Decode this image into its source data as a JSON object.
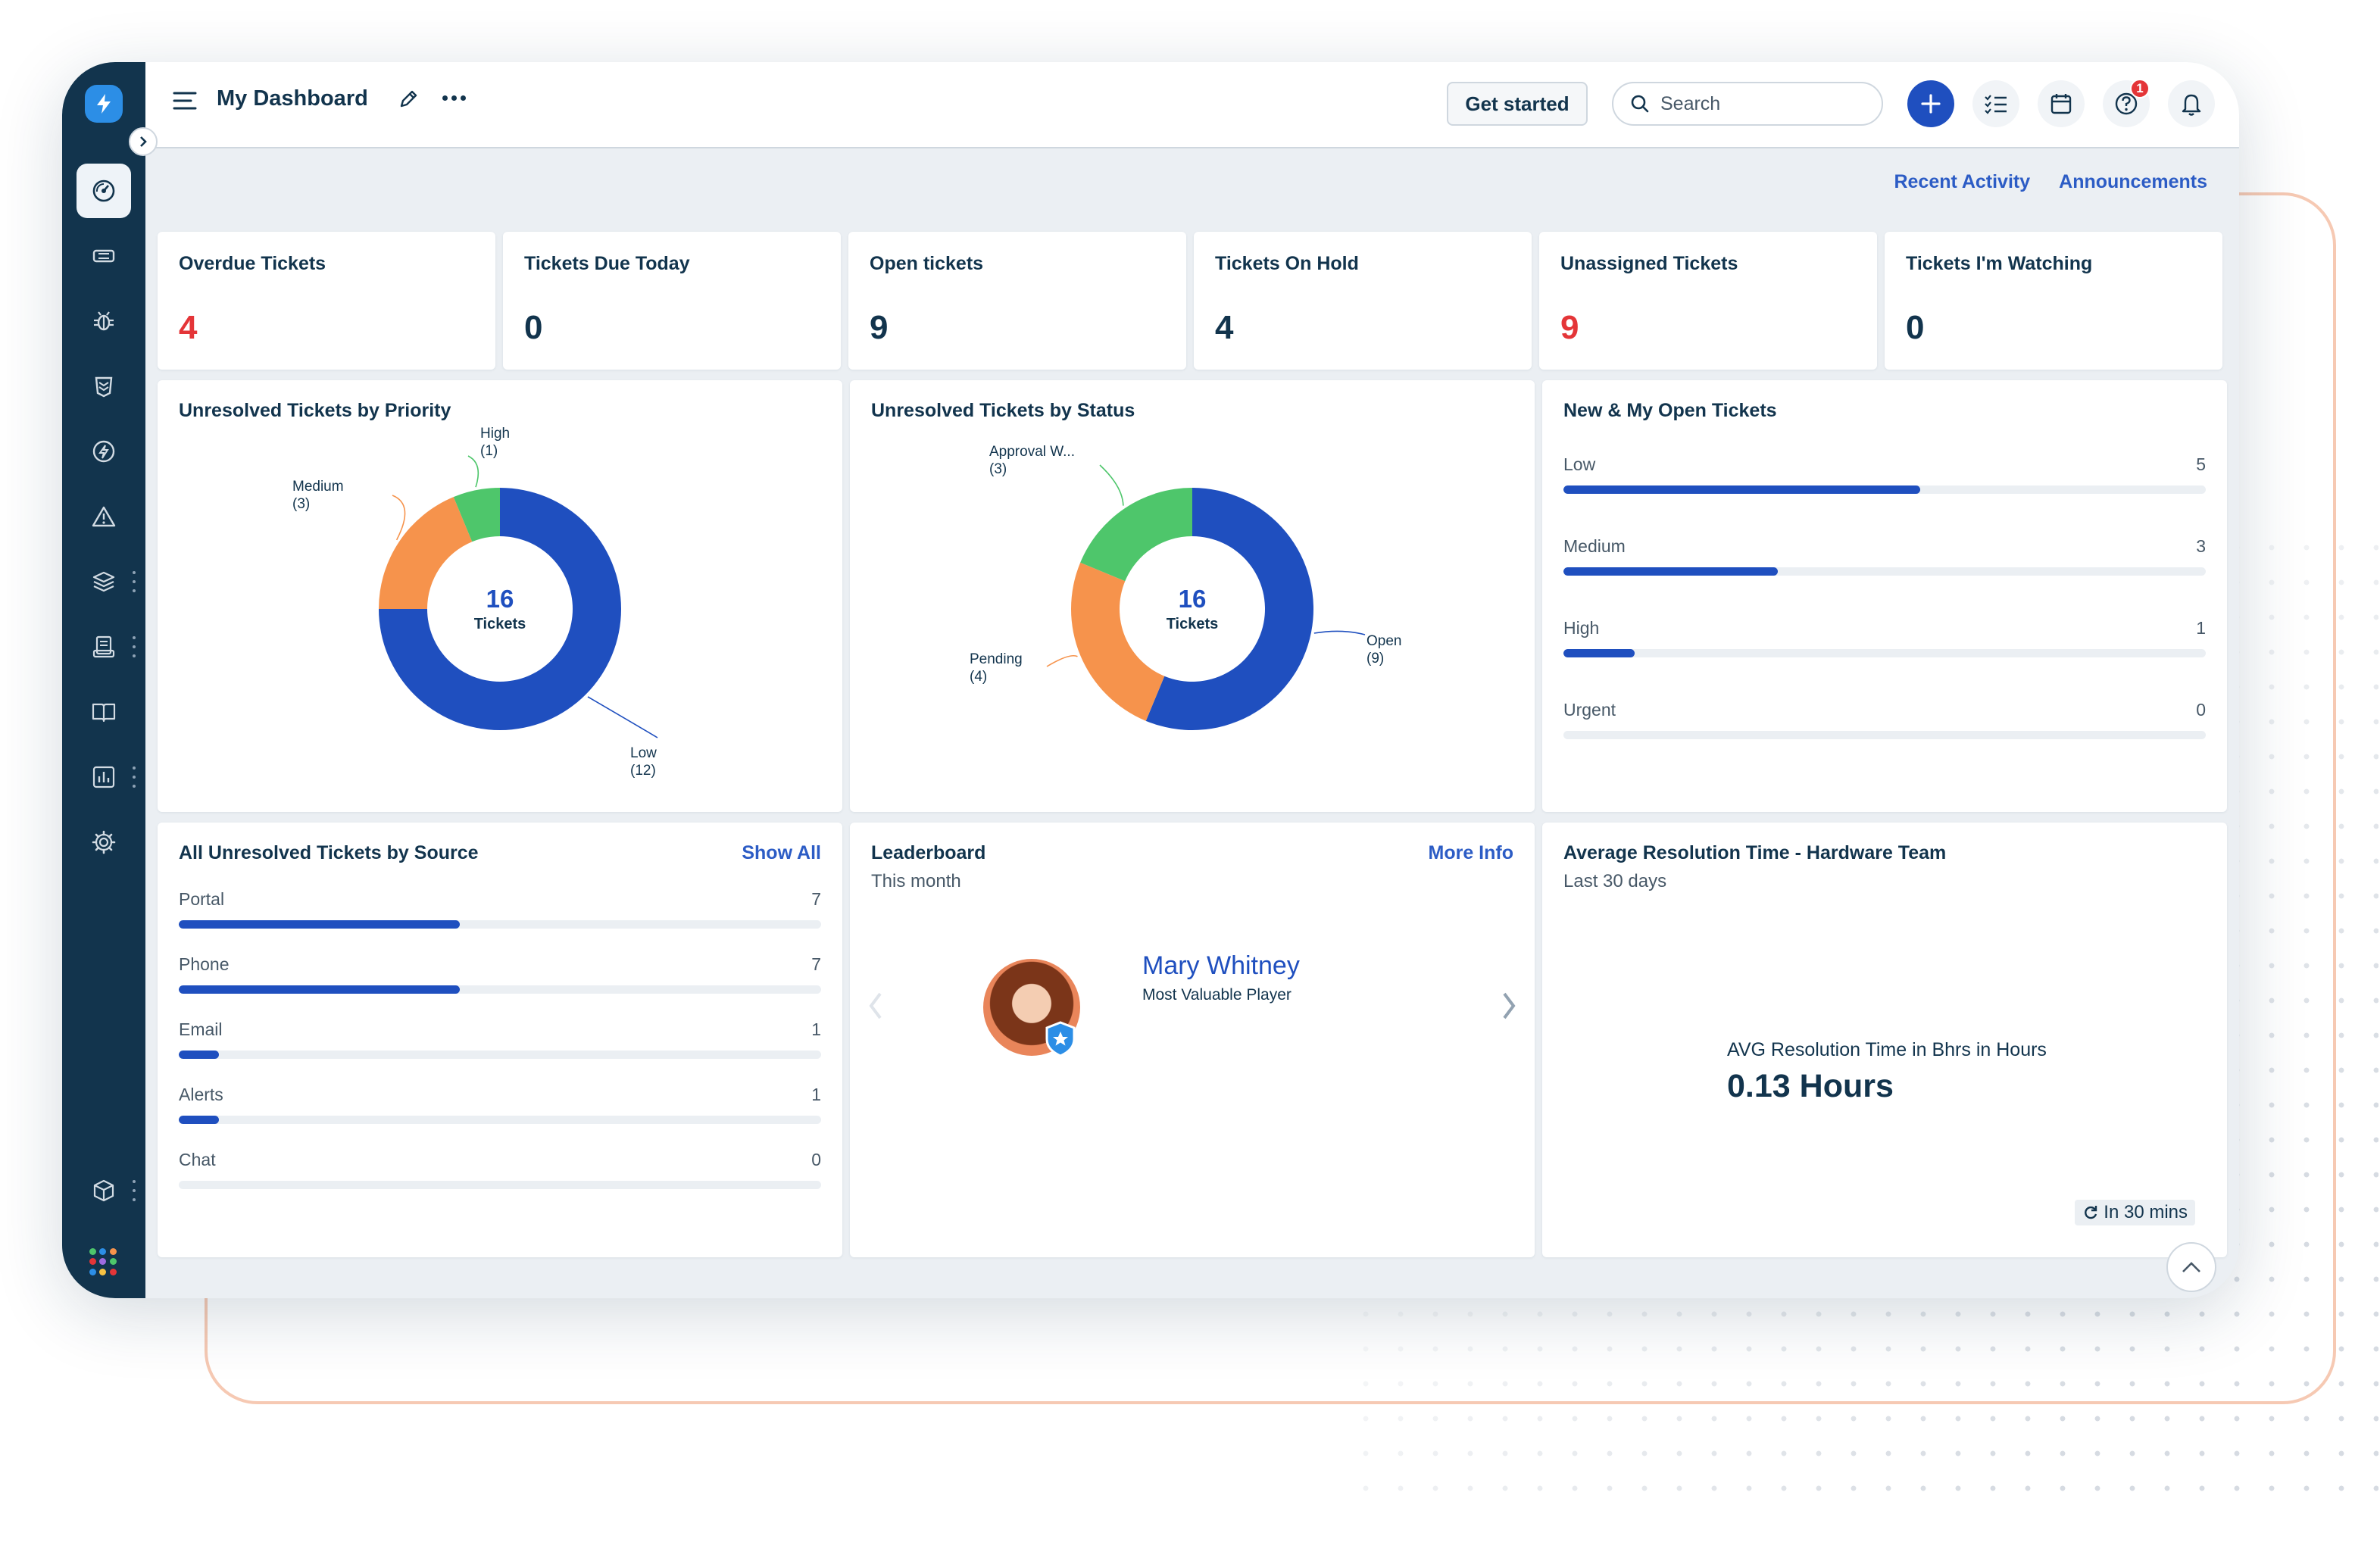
{
  "header": {
    "title": "My Dashboard",
    "get_started_label": "Get started",
    "search_placeholder": "Search",
    "help_badge_count": "1"
  },
  "top_links": {
    "recent_activity": "Recent Activity",
    "announcements": "Announcements"
  },
  "stats": [
    {
      "label": "Overdue Tickets",
      "value": "4",
      "emphasis": "red"
    },
    {
      "label": "Tickets Due Today",
      "value": "0",
      "emphasis": "normal"
    },
    {
      "label": "Open tickets",
      "value": "9",
      "emphasis": "normal"
    },
    {
      "label": "Tickets On Hold",
      "value": "4",
      "emphasis": "normal"
    },
    {
      "label": "Unassigned Tickets",
      "value": "9",
      "emphasis": "red"
    },
    {
      "label": "Tickets I'm Watching",
      "value": "0",
      "emphasis": "normal"
    }
  ],
  "priority_chart": {
    "title": "Unresolved Tickets by Priority",
    "center_value": "16",
    "center_label": "Tickets",
    "slice_labels": [
      {
        "name": "Low",
        "count": "(12)"
      },
      {
        "name": "Medium",
        "count": "(3)"
      },
      {
        "name": "High",
        "count": "(1)"
      }
    ]
  },
  "status_chart": {
    "title": "Unresolved Tickets by Status",
    "center_value": "16",
    "center_label": "Tickets",
    "slice_labels": [
      {
        "name": "Open",
        "count": "(9)"
      },
      {
        "name": "Pending",
        "count": "(4)"
      },
      {
        "name": "Approval W...",
        "count": "(3)"
      }
    ]
  },
  "new_open": {
    "title": "New & My Open Tickets",
    "rows": [
      {
        "label": "Low",
        "value": "5"
      },
      {
        "label": "Medium",
        "value": "3"
      },
      {
        "label": "High",
        "value": "1"
      },
      {
        "label": "Urgent",
        "value": "0"
      }
    ]
  },
  "source": {
    "title": "All Unresolved Tickets by Source",
    "link": "Show All",
    "rows": [
      {
        "label": "Portal",
        "value": "7"
      },
      {
        "label": "Phone",
        "value": "7"
      },
      {
        "label": "Email",
        "value": "1"
      },
      {
        "label": "Alerts",
        "value": "1"
      },
      {
        "label": "Chat",
        "value": "0"
      }
    ]
  },
  "leaderboard": {
    "title": "Leaderboard",
    "subtitle": "This month",
    "link": "More Info",
    "name": "Mary Whitney",
    "role": "Most Valuable Player"
  },
  "avg_resolution": {
    "title": "Average Resolution Time - Hardware Team",
    "subtitle": "Last 30 days",
    "metric_label": "AVG Resolution Time in Bhrs in Hours",
    "metric_value": "0.13 Hours",
    "refresh_label": "In 30 mins"
  },
  "chart_data": [
    {
      "type": "pie",
      "title": "Unresolved Tickets by Priority",
      "categories": [
        "Low",
        "Medium",
        "High"
      ],
      "values": [
        12,
        3,
        1
      ],
      "colors": [
        "#1f4fbf",
        "#f6934c",
        "#4ec66b"
      ]
    },
    {
      "type": "pie",
      "title": "Unresolved Tickets by Status",
      "categories": [
        "Open",
        "Pending",
        "Approval W..."
      ],
      "values": [
        9,
        4,
        3
      ],
      "colors": [
        "#1f4fbf",
        "#f6934c",
        "#4ec66b"
      ]
    },
    {
      "type": "bar",
      "title": "New & My Open Tickets",
      "categories": [
        "Low",
        "Medium",
        "High",
        "Urgent"
      ],
      "values": [
        5,
        3,
        1,
        0
      ],
      "ylim": [
        0,
        9
      ]
    },
    {
      "type": "bar",
      "title": "All Unresolved Tickets by Source",
      "categories": [
        "Portal",
        "Phone",
        "Email",
        "Alerts",
        "Chat"
      ],
      "values": [
        7,
        7,
        1,
        1,
        0
      ],
      "ylim": [
        0,
        16
      ]
    }
  ],
  "colors": {
    "sidebar": "#12344d",
    "accent": "#1f4fbf",
    "link": "#2c5cc5",
    "danger": "#e43538",
    "orange": "#f6934c",
    "green": "#4ec66b"
  },
  "icons": {
    "sidebar": [
      "dashboard-icon",
      "tickets-icon",
      "problems-icon",
      "changes-icon",
      "releases-icon",
      "alerts-icon",
      "assets-icon",
      "contracts-icon",
      "solutions-icon",
      "reports-icon",
      "admin-icon",
      "products-icon",
      "apps-icon"
    ]
  }
}
